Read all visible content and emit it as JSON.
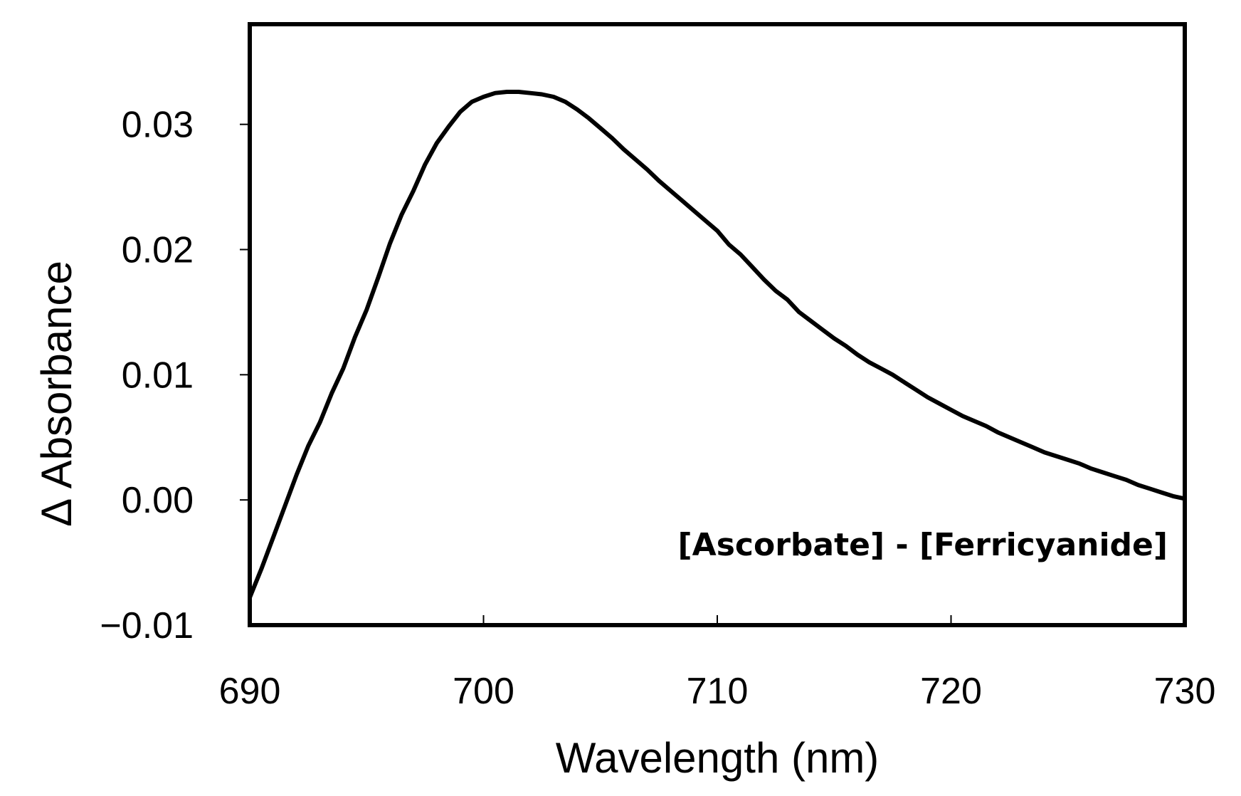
{
  "chart_data": {
    "type": "line",
    "title": "",
    "xlabel": "Wavelength (nm)",
    "ylabel": "Δ Absorbance",
    "xlim": [
      690,
      730
    ],
    "ylim": [
      -0.01,
      0.038
    ],
    "xticks": [
      690,
      700,
      710,
      720,
      730
    ],
    "xtick_labels": [
      "690",
      "700",
      "710",
      "720",
      "730"
    ],
    "yticks": [
      -0.01,
      0.0,
      0.01,
      0.02,
      0.03
    ],
    "ytick_labels": [
      "−0.01",
      "0.00",
      "0.01",
      "0.02",
      "0.03"
    ],
    "grid": false,
    "annotation": "[Ascorbate] - [Ferricyanide]",
    "line_color": "#000000",
    "series": [
      {
        "x": [
          690,
          690.5,
          691,
          691.5,
          692,
          692.5,
          693,
          693.5,
          694,
          694.5,
          695,
          695.5,
          696,
          696.5,
          697,
          697.5,
          698,
          698.5,
          699,
          699.5,
          700,
          700.5,
          701,
          701.5,
          702,
          702.5,
          703,
          703.5,
          704,
          704.5,
          705,
          705.5,
          706,
          706.5,
          707,
          707.5,
          708,
          708.5,
          709,
          709.5,
          710,
          710.5,
          711,
          711.5,
          712,
          712.5,
          713,
          713.5,
          714,
          714.5,
          715,
          715.5,
          716,
          716.5,
          717,
          717.5,
          718,
          718.5,
          719,
          719.5,
          720,
          720.5,
          721,
          721.5,
          722,
          722.5,
          723,
          723.5,
          724,
          724.5,
          725,
          725.5,
          726,
          726.5,
          727,
          727.5,
          728,
          728.5,
          729,
          729.5,
          730
        ],
        "y": [
          -0.0078,
          -0.0055,
          -0.003,
          -0.0005,
          0.002,
          0.0043,
          0.0062,
          0.0085,
          0.0105,
          0.013,
          0.0152,
          0.0178,
          0.0205,
          0.0228,
          0.0247,
          0.0268,
          0.0285,
          0.0298,
          0.031,
          0.0318,
          0.0322,
          0.0325,
          0.0326,
          0.0326,
          0.0325,
          0.0324,
          0.0322,
          0.0318,
          0.0312,
          0.0305,
          0.0297,
          0.0289,
          0.028,
          0.0272,
          0.0264,
          0.0255,
          0.0247,
          0.0239,
          0.0231,
          0.0223,
          0.0215,
          0.0204,
          0.0196,
          0.0186,
          0.0176,
          0.0167,
          0.016,
          0.015,
          0.0143,
          0.0136,
          0.0129,
          0.0123,
          0.0116,
          0.011,
          0.0105,
          0.01,
          0.0094,
          0.0088,
          0.0082,
          0.0077,
          0.0072,
          0.0067,
          0.0063,
          0.0059,
          0.0054,
          0.005,
          0.0046,
          0.0042,
          0.0038,
          0.0035,
          0.0032,
          0.0029,
          0.0025,
          0.0022,
          0.0019,
          0.0016,
          0.0012,
          0.0009,
          0.0006,
          0.0003,
          0.0001
        ]
      }
    ]
  }
}
